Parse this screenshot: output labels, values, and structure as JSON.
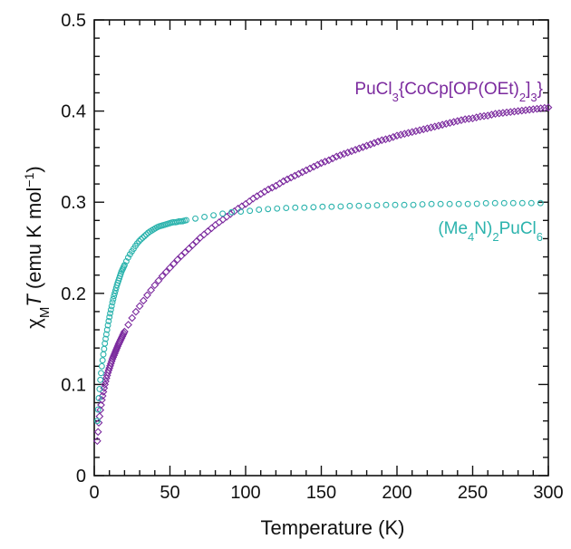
{
  "chart_data": {
    "type": "scatter",
    "xlabel": "Temperature (K)",
    "ylabel_parts": {
      "chi": "χ",
      "sub": "M",
      "italic": "T",
      "units": " (emu K mol",
      "sup": "−1",
      "close": ")"
    },
    "xlim": [
      0,
      300
    ],
    "ylim": [
      0,
      0.5
    ],
    "x_ticks": [
      0,
      50,
      100,
      150,
      200,
      250,
      300
    ],
    "x_tick_labels": [
      "0",
      "50",
      "100",
      "150",
      "200",
      "250",
      "300"
    ],
    "y_ticks": [
      0,
      0.1,
      0.2,
      0.3,
      0.4,
      0.5
    ],
    "y_tick_labels": [
      "0",
      "0.1",
      "0.2",
      "0.3",
      "0.4",
      "0.5"
    ],
    "grid": false,
    "series": [
      {
        "label_parts": [
          [
            "PuCl",
            ""
          ],
          [
            "3",
            "sub"
          ],
          [
            "{CoCp[OP(OEt)",
            ""
          ],
          [
            "2",
            "sub"
          ],
          [
            "]",
            ""
          ],
          [
            "3",
            "sub"
          ],
          [
            "}",
            ""
          ]
        ],
        "color": "#7b2a9e",
        "marker": "diamond",
        "x": [
          2,
          3,
          4,
          5,
          6,
          7,
          8,
          9,
          10,
          12,
          14,
          16,
          18,
          20,
          23,
          26,
          30,
          35,
          40,
          45,
          50,
          55,
          60,
          65,
          70,
          75,
          80,
          85,
          90,
          95,
          100,
          105,
          110,
          115,
          120,
          125,
          130,
          135,
          140,
          145,
          150,
          155,
          160,
          165,
          170,
          175,
          180,
          185,
          190,
          195,
          200,
          205,
          210,
          215,
          220,
          225,
          230,
          235,
          240,
          245,
          250,
          255,
          260,
          265,
          270,
          275,
          280,
          285,
          290,
          295,
          300
        ],
        "y": [
          0.038,
          0.058,
          0.072,
          0.083,
          0.092,
          0.1,
          0.107,
          0.113,
          0.118,
          0.128,
          0.136,
          0.144,
          0.151,
          0.158,
          0.167,
          0.176,
          0.186,
          0.198,
          0.209,
          0.219,
          0.228,
          0.237,
          0.245,
          0.253,
          0.261,
          0.268,
          0.275,
          0.281,
          0.287,
          0.293,
          0.298,
          0.304,
          0.309,
          0.314,
          0.318,
          0.323,
          0.327,
          0.331,
          0.335,
          0.339,
          0.343,
          0.346,
          0.35,
          0.353,
          0.356,
          0.359,
          0.362,
          0.365,
          0.368,
          0.37,
          0.373,
          0.375,
          0.377,
          0.379,
          0.381,
          0.383,
          0.385,
          0.387,
          0.389,
          0.391,
          0.392,
          0.394,
          0.395,
          0.397,
          0.398,
          0.399,
          0.4,
          0.401,
          0.402,
          0.403,
          0.404
        ]
      },
      {
        "label_parts": [
          [
            "(Me",
            ""
          ],
          [
            "4",
            "sub"
          ],
          [
            "N)",
            ""
          ],
          [
            "2",
            "sub"
          ],
          [
            "PuCl",
            ""
          ],
          [
            "6",
            "sub"
          ]
        ],
        "color": "#2bb3ad",
        "marker": "circle",
        "x": [
          2,
          3,
          4,
          5,
          6,
          7,
          8,
          9,
          10,
          11,
          12,
          13,
          14,
          15,
          16,
          17,
          18,
          20,
          22,
          24,
          26,
          28,
          30,
          32,
          34,
          36,
          38,
          40,
          42,
          44,
          46,
          48,
          50,
          52,
          54,
          56,
          58,
          60,
          70,
          80,
          90,
          100,
          110,
          120,
          130,
          140,
          150,
          160,
          170,
          180,
          190,
          200,
          210,
          220,
          230,
          240,
          250,
          260,
          270,
          280,
          290,
          300
        ],
        "y": [
          0.06,
          0.085,
          0.105,
          0.12,
          0.133,
          0.145,
          0.155,
          0.165,
          0.174,
          0.182,
          0.19,
          0.197,
          0.203,
          0.209,
          0.214,
          0.219,
          0.224,
          0.231,
          0.238,
          0.244,
          0.249,
          0.254,
          0.258,
          0.261,
          0.264,
          0.267,
          0.269,
          0.271,
          0.273,
          0.274,
          0.275,
          0.276,
          0.277,
          0.278,
          0.278,
          0.279,
          0.279,
          0.28,
          0.283,
          0.286,
          0.289,
          0.29,
          0.292,
          0.293,
          0.294,
          0.294,
          0.295,
          0.295,
          0.296,
          0.296,
          0.297,
          0.297,
          0.297,
          0.298,
          0.298,
          0.298,
          0.298,
          0.299,
          0.299,
          0.299,
          0.299,
          0.299
        ]
      }
    ]
  }
}
